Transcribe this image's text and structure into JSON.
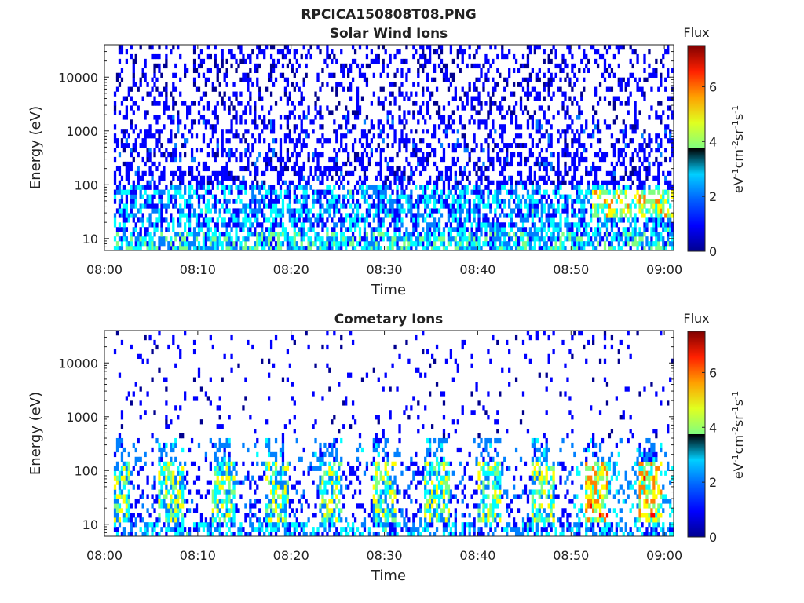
{
  "figure_title": "RPCICA150808T08.PNG",
  "colors": {
    "colormap": [
      "#00008f",
      "#0000ff",
      "#0080ff",
      "#00ffff",
      "#80ff80",
      "#ffff00",
      "#ff8000",
      "#ff0000",
      "#800000"
    ]
  },
  "chart_data": [
    {
      "type": "heatmap",
      "title": "Solar Wind Ions",
      "xlabel": "Time",
      "ylabel": "Energy (eV)",
      "x_ticks": [
        "08:00",
        "08:10",
        "08:20",
        "08:30",
        "08:40",
        "08:50",
        "09:00"
      ],
      "x_range": [
        "08:00",
        "09:01"
      ],
      "y_scale": "log",
      "y_ticks": [
        "10",
        "100",
        "1000",
        "10000"
      ],
      "y_range": [
        6,
        40000
      ],
      "colorbar": {
        "label": "Flux",
        "unit_text": "eV-1cm-2sr-1s-1",
        "ticks": [
          "0",
          "2",
          "4",
          "6"
        ],
        "range": [
          0,
          7.5
        ]
      }
    },
    {
      "type": "heatmap",
      "title": "Cometary Ions",
      "xlabel": "Time",
      "ylabel": "Energy (eV)",
      "x_ticks": [
        "08:00",
        "08:10",
        "08:20",
        "08:30",
        "08:40",
        "08:50",
        "09:00"
      ],
      "x_range": [
        "08:00",
        "09:01"
      ],
      "y_scale": "log",
      "y_ticks": [
        "10",
        "100",
        "1000",
        "10000"
      ],
      "y_range": [
        6,
        40000
      ],
      "colorbar": {
        "label": "Flux",
        "unit_text": "eV-1cm-2sr-1s-1",
        "ticks": [
          "0",
          "2",
          "4",
          "6"
        ],
        "range": [
          0,
          7.5
        ]
      }
    }
  ]
}
